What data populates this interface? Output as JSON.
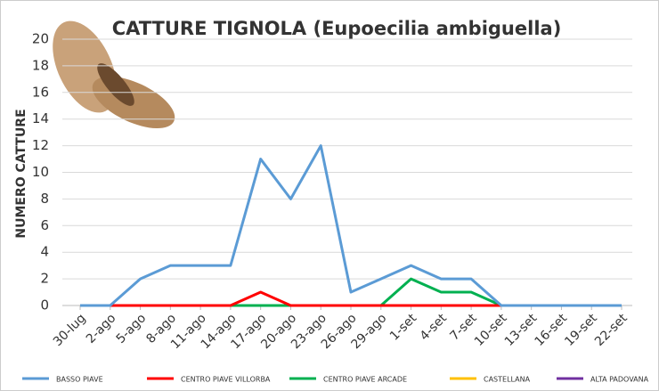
{
  "chart_data": {
    "type": "line",
    "title": "CATTURE TIGNOLA (Eupoecilia ambiguella)",
    "y_label": "NUMERO CATTURE",
    "categories": [
      "30-lug",
      "2-ago",
      "5-ago",
      "8-ago",
      "11-ago",
      "14-ago",
      "17-ago",
      "20-ago",
      "23-ago",
      "26-ago",
      "29-ago",
      "1-set",
      "4-set",
      "7-set",
      "10-set",
      "13-set",
      "16-set",
      "19-set",
      "22-set"
    ],
    "series": [
      {
        "name": "BASSO PIAVE",
        "color": "#5b9bd5",
        "values": [
          0,
          0,
          2,
          3,
          3,
          3,
          11,
          8,
          12,
          1,
          2,
          3,
          2,
          2,
          0,
          0,
          0,
          0,
          0
        ]
      },
      {
        "name": "CENTRO PIAVE VILLORBA",
        "color": "#ff0000",
        "values": [
          0,
          0,
          0,
          0,
          0,
          0,
          1,
          0,
          0,
          0,
          0,
          0,
          0,
          0,
          0,
          0,
          0,
          0,
          0
        ]
      },
      {
        "name": "CENTRO PIAVE ARCADE",
        "color": "#00b050",
        "values": [
          0,
          0,
          0,
          0,
          0,
          0,
          0,
          0,
          0,
          0,
          0,
          2,
          1,
          1,
          0,
          0,
          0,
          0,
          0
        ]
      },
      {
        "name": "CASTELLANA",
        "color": "#ffc000",
        "values": [
          0,
          0,
          0,
          0,
          0,
          0,
          0,
          0,
          0,
          0,
          0,
          0,
          0,
          0,
          0,
          0,
          0,
          0,
          0
        ]
      },
      {
        "name": "ALTA PADOVANA",
        "color": "#7030a0",
        "values": [
          0,
          0,
          0,
          0,
          0,
          0,
          0,
          0,
          0,
          0,
          0,
          0,
          0,
          0,
          0,
          0,
          0,
          0,
          0
        ]
      }
    ],
    "ylim": [
      0,
      20
    ],
    "yticks": [
      0,
      2,
      4,
      6,
      8,
      10,
      12,
      14,
      16,
      18,
      20
    ],
    "grid": true,
    "legend": "bottom"
  }
}
